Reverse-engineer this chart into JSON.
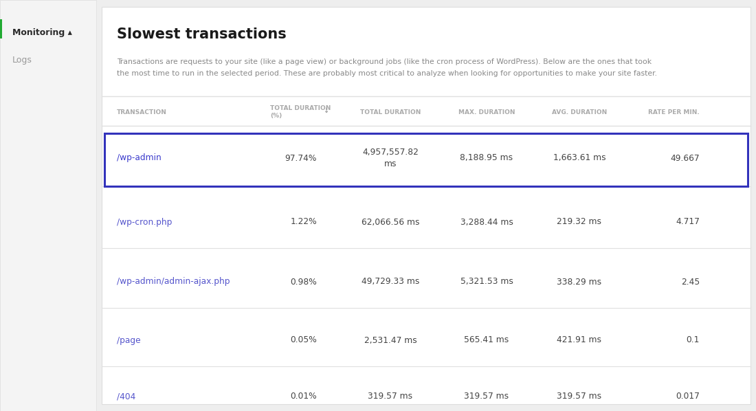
{
  "title": "Slowest transactions",
  "description_line1": "Transactions are requests to your site (like a page view) or background jobs (like the cron process of WordPress). Below are the ones that took",
  "description_line2": "the most time to run in the selected period. These are probably most critical to analyze when looking for opportunities to make your site faster.",
  "sidebar_items": [
    "Monitoring ▴",
    "Logs"
  ],
  "col_headers": [
    "TRANSACTION",
    "TOTAL DURATION\n(%)",
    "TOTAL DURATION",
    "MAX. DURATION",
    "AVG. DURATION",
    "RATE PER MIN."
  ],
  "rows": [
    {
      "transaction": "/wp-admin",
      "pct": "97.74%",
      "total_dur": "4,957,557.82\nms",
      "max_dur": "8,188.95 ms",
      "avg_dur": "1,663.61 ms",
      "rate": "49.667",
      "highlight": true,
      "link_color": "#3a3acc"
    },
    {
      "transaction": "/wp-cron.php",
      "pct": "1.22%",
      "total_dur": "62,066.56 ms",
      "max_dur": "3,288.44 ms",
      "avg_dur": "219.32 ms",
      "rate": "4.717",
      "highlight": false,
      "link_color": "#5555cc"
    },
    {
      "transaction": "/wp-admin/admin-ajax.php",
      "pct": "0.98%",
      "total_dur": "49,729.33 ms",
      "max_dur": "5,321.53 ms",
      "avg_dur": "338.29 ms",
      "rate": "2.45",
      "highlight": false,
      "link_color": "#5555cc"
    },
    {
      "transaction": "/page",
      "pct": "0.05%",
      "total_dur": "2,531.47 ms",
      "max_dur": "565.41 ms",
      "avg_dur": "421.91 ms",
      "rate": "0.1",
      "highlight": false,
      "link_color": "#5555cc"
    },
    {
      "transaction": "/404",
      "pct": "0.01%",
      "total_dur": "319.57 ms",
      "max_dur": "319.57 ms",
      "avg_dur": "319.57 ms",
      "rate": "0.017",
      "highlight": false,
      "link_color": "#5555cc"
    }
  ],
  "bg_color": "#eeeeee",
  "panel_color": "#ffffff",
  "sidebar_bg": "#f4f4f4",
  "header_text_color": "#aaaaaa",
  "row_text_color": "#444444",
  "highlight_border_color": "#3333bb",
  "divider_color": "#e0e0e0",
  "sidebar_text_color": "#2a2a2a",
  "sort_arrow_color": "#888888",
  "green_bar_color": "#22aa33"
}
